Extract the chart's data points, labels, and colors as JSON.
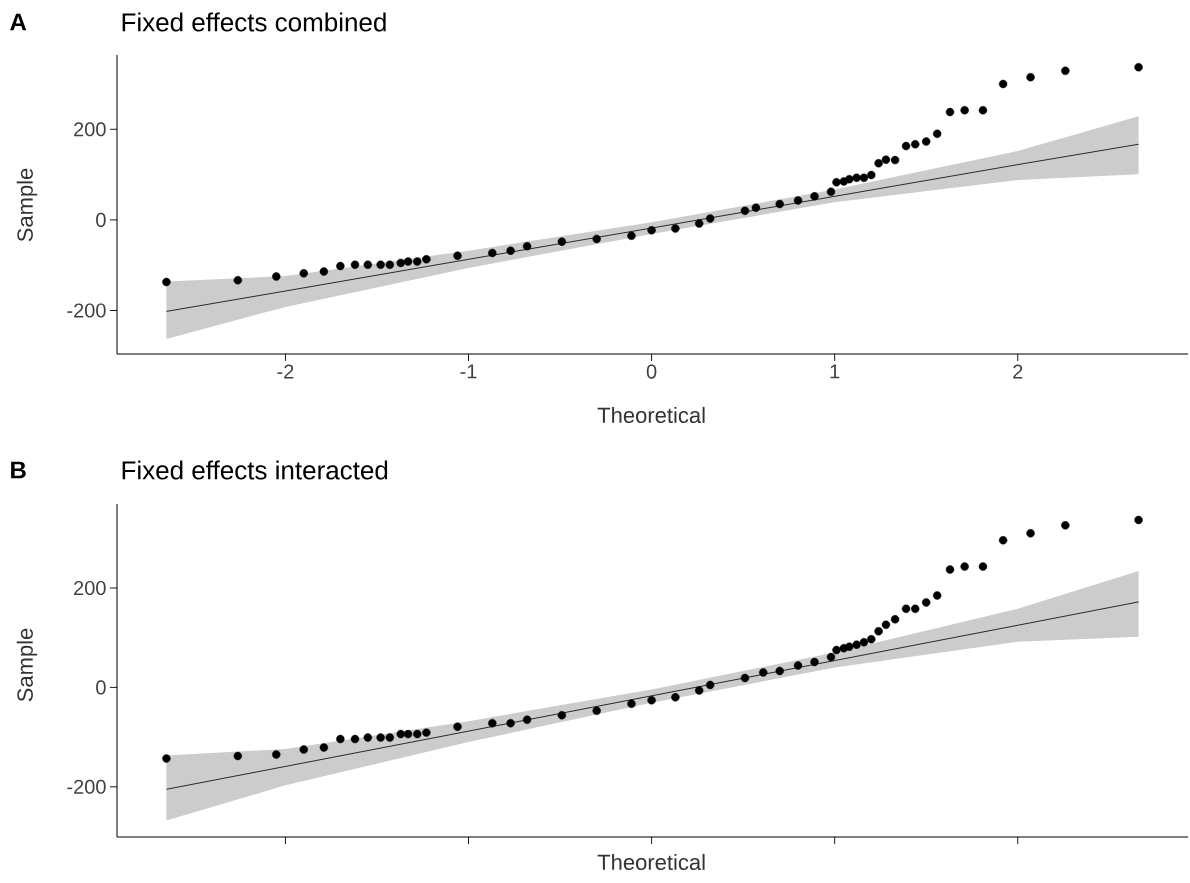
{
  "chart_data": [
    {
      "type": "scatter",
      "title": "Fixed effects combined",
      "annotations": [
        "A"
      ],
      "xlabel": "Theoretical",
      "ylabel": "Sample",
      "xlim": [
        -2.92,
        2.93
      ],
      "ylim": [
        -296,
        364
      ],
      "xticks": [
        -2,
        -1,
        0,
        1,
        2
      ],
      "yticks": [
        -200,
        0,
        200
      ],
      "series": [
        {
          "type": "line",
          "color": "#000000",
          "x": [
            -2.65,
            -2,
            -1,
            0,
            1,
            2,
            2.66
          ],
          "values": [
            -202,
            -157,
            -87,
            -18,
            52,
            122,
            167
          ],
          "lower": [
            -263,
            -192,
            -106,
            -31,
            39,
            88,
            101
          ],
          "upper": [
            -136,
            -124,
            -68,
            -5,
            67,
            152,
            229
          ]
        },
        {
          "color": "#000000",
          "marker": "circle",
          "x": [
            -2.65,
            -2.26,
            -2.05,
            -1.9,
            -1.79,
            -1.7,
            -1.62,
            -1.55,
            -1.48,
            -1.43,
            -1.37,
            -1.33,
            -1.28,
            -1.23,
            -1.06,
            -0.87,
            -0.77,
            -0.68,
            -0.49,
            -0.3,
            -0.11,
            0,
            0.13,
            0.26,
            0.32,
            0.51,
            0.57,
            0.7,
            0.8,
            0.89,
            0.98,
            1.01,
            1.05,
            1.08,
            1.12,
            1.16,
            1.2,
            1.24,
            1.28,
            1.33,
            1.39,
            1.44,
            1.5,
            1.56,
            1.63,
            1.71,
            1.81,
            1.92,
            2.07,
            2.26,
            2.66
          ],
          "values": [
            -137,
            -133,
            -125,
            -118,
            -114,
            -102,
            -99,
            -99,
            -99,
            -99,
            -95,
            -92,
            -92,
            -87,
            -79,
            -73,
            -68,
            -58,
            -48,
            -42,
            -35,
            -23,
            -19,
            -8,
            3,
            20,
            27,
            35,
            43,
            52,
            62,
            83,
            85,
            90,
            93,
            93,
            99,
            125,
            133,
            132,
            163,
            167,
            173,
            190,
            238,
            242,
            242,
            300,
            315,
            329,
            337
          ]
        }
      ]
    },
    {
      "type": "scatter",
      "title": "Fixed effects interacted",
      "annotations": [
        "B"
      ],
      "xlabel": "Theoretical",
      "ylabel": "Sample",
      "xlim": [
        -2.92,
        2.93
      ],
      "ylim": [
        -301,
        369
      ],
      "xticks": [
        {
          "value": -2,
          "label": null
        },
        {
          "value": -1,
          "label": null
        },
        {
          "value": 0,
          "label": null
        },
        {
          "value": 1,
          "label": null
        },
        {
          "value": 2,
          "label": null
        }
      ],
      "yticks": [
        -200,
        0,
        200
      ],
      "tick_labels": "y",
      "series": [
        {
          "type": "line",
          "color": "#000000",
          "x": [
            -2.65,
            -2,
            -1,
            0,
            1,
            2,
            2.66
          ],
          "values": [
            -205,
            -159,
            -88,
            -17,
            54,
            125,
            172
          ],
          "lower": [
            -268,
            -197,
            -110,
            -31,
            40,
            92,
            102
          ],
          "upper": [
            -137,
            -124,
            -68,
            -4,
            70,
            158,
            234
          ]
        },
        {
          "color": "#000000",
          "marker": "circle",
          "x": [
            -2.65,
            -2.26,
            -2.05,
            -1.9,
            -1.79,
            -1.7,
            -1.62,
            -1.55,
            -1.48,
            -1.43,
            -1.37,
            -1.33,
            -1.28,
            -1.23,
            -1.06,
            -0.87,
            -0.77,
            -0.68,
            -0.49,
            -0.3,
            -0.11,
            0,
            0.13,
            0.26,
            0.32,
            0.51,
            0.61,
            0.7,
            0.8,
            0.89,
            0.98,
            1.01,
            1.05,
            1.08,
            1.12,
            1.16,
            1.2,
            1.24,
            1.28,
            1.33,
            1.39,
            1.44,
            1.5,
            1.56,
            1.63,
            1.71,
            1.81,
            1.92,
            2.07,
            2.26,
            2.66
          ],
          "values": [
            -143,
            -138,
            -135,
            -125,
            -121,
            -104,
            -104,
            -101,
            -101,
            -101,
            -94,
            -94,
            -94,
            -91,
            -79,
            -72,
            -72,
            -65,
            -56,
            -47,
            -33,
            -26,
            -20,
            -6,
            5,
            19,
            30,
            33,
            44,
            51,
            61,
            75,
            79,
            82,
            86,
            91,
            97,
            113,
            126,
            137,
            158,
            158,
            171,
            185,
            237,
            243,
            243,
            296,
            310,
            326,
            337
          ]
        }
      ]
    }
  ]
}
